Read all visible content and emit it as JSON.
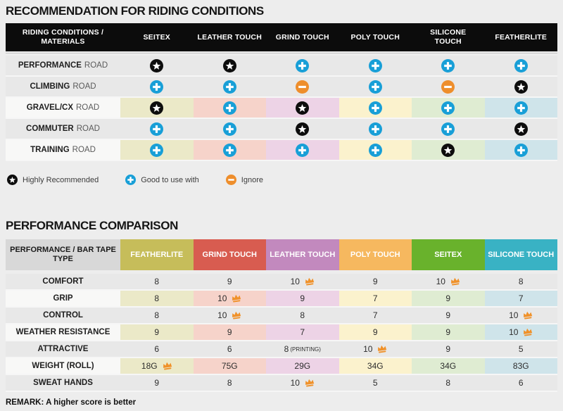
{
  "page_background": "#ededed",
  "colors": {
    "star_bg": "#0d0d0d",
    "plus_bg": "#189fd7",
    "minus_bg": "#ee8e2c",
    "crown": "#f09129",
    "header1_bg": "#0c0c0c",
    "plain_row_bg": "#e8e8e8",
    "highlight_label_bg": "#f8f8f7",
    "column_tints": [
      "#ebe9c8",
      "#f6d3ca",
      "#edd3e6",
      "#fbf2cd",
      "#dfecd2",
      "#cfe4ea"
    ]
  },
  "section1": {
    "title": "RECOMMENDATION FOR RIDING CONDITIONS",
    "legend": [
      {
        "icon": "star",
        "label": "Highly Recommended"
      },
      {
        "icon": "plus",
        "label": "Good to use with"
      },
      {
        "icon": "minus",
        "label": "Ignore"
      }
    ]
  },
  "section2": {
    "title": "PERFORMANCE COMPARISON",
    "remark": "REMARK: A higher score is better"
  },
  "chart_data": [
    {
      "type": "table",
      "title": "RECOMMENDATION FOR RIDING CONDITIONS",
      "corner_header": "RIDING CONDITIONS / MATERIALS",
      "columns": [
        "SEITEX",
        "LEATHER TOUCH",
        "GRIND TOUCH",
        "POLY TOUCH",
        "SILICONE TOUCH",
        "FEATHERLITE"
      ],
      "icon_meaning": {
        "star": "Highly Recommended",
        "plus": "Good to use with",
        "minus": "Ignore"
      },
      "rows": [
        {
          "label": "PERFORMANCE",
          "label_suffix": "ROAD",
          "highlighted": false,
          "values": [
            "star",
            "star",
            "plus",
            "plus",
            "plus",
            "plus"
          ]
        },
        {
          "label": "CLIMBING",
          "label_suffix": "ROAD",
          "highlighted": false,
          "values": [
            "plus",
            "plus",
            "minus",
            "plus",
            "minus",
            "star"
          ]
        },
        {
          "label": "GRAVEL/CX",
          "label_suffix": "ROAD",
          "highlighted": true,
          "values": [
            "star",
            "plus",
            "star",
            "plus",
            "plus",
            "plus"
          ]
        },
        {
          "label": "COMMUTER",
          "label_suffix": "ROAD",
          "highlighted": false,
          "values": [
            "plus",
            "plus",
            "star",
            "plus",
            "plus",
            "star"
          ]
        },
        {
          "label": "TRAINING",
          "label_suffix": "ROAD",
          "highlighted": true,
          "values": [
            "plus",
            "plus",
            "plus",
            "plus",
            "star",
            "plus"
          ]
        }
      ]
    },
    {
      "type": "table",
      "title": "PERFORMANCE COMPARISON",
      "corner_header": "PERFORMANCE / BAR TAPE TYPE",
      "columns": [
        {
          "label": "FEATHERLITE",
          "color": "#c6bd5a"
        },
        {
          "label": "GRIND TOUCH",
          "color": "#d85c50"
        },
        {
          "label": "LEATHER TOUCH",
          "color": "#c289be"
        },
        {
          "label": "POLY TOUCH",
          "color": "#f6b85f"
        },
        {
          "label": "SEITEX",
          "color": "#69b22c"
        },
        {
          "label": "SILICONE TOUCH",
          "color": "#39b2c4"
        }
      ],
      "crown_meaning": "best score in row",
      "rows": [
        {
          "label": "COMFORT",
          "highlighted": false,
          "values": [
            {
              "text": "8"
            },
            {
              "text": "9"
            },
            {
              "text": "10",
              "crown": true
            },
            {
              "text": "9"
            },
            {
              "text": "10",
              "crown": true
            },
            {
              "text": "8"
            }
          ]
        },
        {
          "label": "GRIP",
          "highlighted": true,
          "values": [
            {
              "text": "8"
            },
            {
              "text": "10",
              "crown": true
            },
            {
              "text": "9"
            },
            {
              "text": "7"
            },
            {
              "text": "9"
            },
            {
              "text": "7"
            }
          ]
        },
        {
          "label": "CONTROL",
          "highlighted": false,
          "values": [
            {
              "text": "8"
            },
            {
              "text": "10",
              "crown": true
            },
            {
              "text": "8"
            },
            {
              "text": "7"
            },
            {
              "text": "9"
            },
            {
              "text": "10",
              "crown": true
            }
          ]
        },
        {
          "label": "WEATHER RESISTANCE",
          "highlighted": true,
          "values": [
            {
              "text": "9"
            },
            {
              "text": "9"
            },
            {
              "text": "7"
            },
            {
              "text": "9"
            },
            {
              "text": "9"
            },
            {
              "text": "10",
              "crown": true
            }
          ]
        },
        {
          "label": "ATTRACTIVE",
          "highlighted": false,
          "values": [
            {
              "text": "6"
            },
            {
              "text": "6"
            },
            {
              "text": "8",
              "note": "(PRINTING)"
            },
            {
              "text": "10",
              "crown": true
            },
            {
              "text": "9"
            },
            {
              "text": "5"
            }
          ]
        },
        {
          "label": "WEIGHT (ROLL)",
          "highlighted": true,
          "values": [
            {
              "text": "18G",
              "crown": true
            },
            {
              "text": "75G"
            },
            {
              "text": "29G"
            },
            {
              "text": "34G"
            },
            {
              "text": "34G"
            },
            {
              "text": "83G"
            }
          ]
        },
        {
          "label": "SWEAT HANDS",
          "highlighted": false,
          "values": [
            {
              "text": "9"
            },
            {
              "text": "8"
            },
            {
              "text": "10",
              "crown": true
            },
            {
              "text": "5"
            },
            {
              "text": "8"
            },
            {
              "text": "6"
            }
          ]
        }
      ]
    }
  ]
}
